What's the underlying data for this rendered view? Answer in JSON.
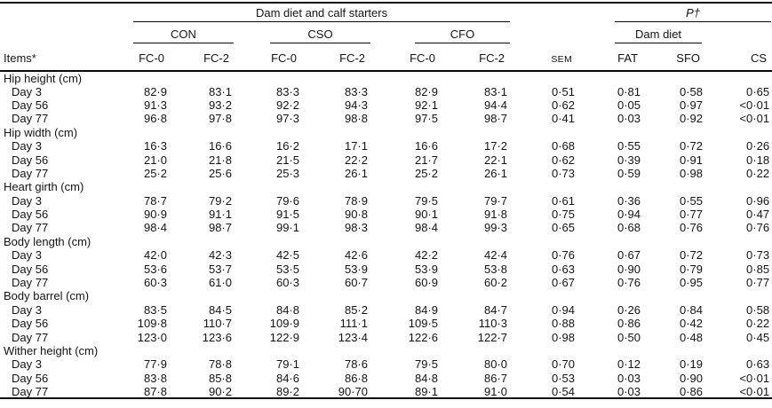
{
  "colors": {
    "background": "#ffffff",
    "text": "#141414",
    "rule": "#0a0a0a"
  },
  "table": {
    "header": {
      "items_label": "Items*",
      "top_spanner": "Dam diet and calf starters",
      "p_spanner": "P†",
      "diet_groups": [
        "CON",
        "CSO",
        "CFO"
      ],
      "dam_diet_spanner": "Dam diet",
      "sub_cols": [
        "FC-0",
        "FC-2"
      ],
      "sem_label": "SEM",
      "p_cols": [
        "FAT",
        "SFO",
        "CS"
      ]
    },
    "sections": [
      {
        "label": "Hip height (cm)",
        "rows": [
          {
            "label": "Day 3",
            "values": [
              "82·9",
              "83·1",
              "83·3",
              "83·3",
              "82·9",
              "83·1",
              "0·51",
              "0·81",
              "0·58",
              "0·65"
            ]
          },
          {
            "label": "Day 56",
            "values": [
              "91·3",
              "93·2",
              "92·2",
              "94·3",
              "92·1",
              "94·4",
              "0·62",
              "0·05",
              "0·97",
              "<0·01"
            ]
          },
          {
            "label": "Day 77",
            "values": [
              "96·8",
              "97·8",
              "97·3",
              "98·8",
              "97·5",
              "98·7",
              "0·41",
              "0·03",
              "0·92",
              "<0·01"
            ]
          }
        ]
      },
      {
        "label": "Hip width (cm)",
        "rows": [
          {
            "label": "Day 3",
            "values": [
              "16·3",
              "16·6",
              "16·2",
              "17·1",
              "16·6",
              "17·2",
              "0·68",
              "0·55",
              "0·72",
              "0·26"
            ]
          },
          {
            "label": "Day 56",
            "values": [
              "21·0",
              "21·8",
              "21·5",
              "22·2",
              "21·7",
              "22·1",
              "0·62",
              "0·39",
              "0·91",
              "0·18"
            ]
          },
          {
            "label": "Day 77",
            "values": [
              "25·2",
              "25·6",
              "25·3",
              "26·1",
              "25·2",
              "26·1",
              "0·73",
              "0·59",
              "0·98",
              "0·22"
            ]
          }
        ]
      },
      {
        "label": "Heart girth (cm)",
        "rows": [
          {
            "label": "Day 3",
            "values": [
              "78·7",
              "79·2",
              "79·6",
              "78·9",
              "79·5",
              "79·7",
              "0·61",
              "0·36",
              "0·55",
              "0·96"
            ]
          },
          {
            "label": "Day 56",
            "values": [
              "90·9",
              "91·1",
              "91·5",
              "90·8",
              "90·1",
              "91·8",
              "0·75",
              "0·94",
              "0·77",
              "0·47"
            ]
          },
          {
            "label": "Day 77",
            "values": [
              "98·4",
              "98·7",
              "99·1",
              "98·3",
              "98·4",
              "99·3",
              "0·65",
              "0·68",
              "0·76",
              "0·76"
            ]
          }
        ]
      },
      {
        "label": "Body length (cm)",
        "rows": [
          {
            "label": "Day 3",
            "values": [
              "42·0",
              "42·3",
              "42·5",
              "42·6",
              "42·2",
              "42·4",
              "0·76",
              "0·67",
              "0·72",
              "0·73"
            ]
          },
          {
            "label": "Day 56",
            "values": [
              "53·6",
              "53·7",
              "53·5",
              "53·9",
              "53·9",
              "53·8",
              "0·63",
              "0·90",
              "0·79",
              "0·85"
            ]
          },
          {
            "label": "Day 77",
            "values": [
              "60·3",
              "61·0",
              "60·3",
              "60·7",
              "60·9",
              "60·2",
              "0·67",
              "0·76",
              "0·95",
              "0·77"
            ]
          }
        ]
      },
      {
        "label": "Body barrel (cm)",
        "rows": [
          {
            "label": "Day 3",
            "values": [
              "83·5",
              "84·5",
              "84·8",
              "85·2",
              "84·9",
              "84·7",
              "0·94",
              "0·26",
              "0·84",
              "0·58"
            ]
          },
          {
            "label": "Day 56",
            "values": [
              "109·8",
              "110·7",
              "109·9",
              "111·1",
              "109·5",
              "110·3",
              "0·88",
              "0·86",
              "0·42",
              "0·22"
            ]
          },
          {
            "label": "Day 77",
            "values": [
              "123·0",
              "123·6",
              "122·9",
              "123·4",
              "122·6",
              "122·7",
              "0·98",
              "0·50",
              "0·48",
              "0·45"
            ]
          }
        ]
      },
      {
        "label": "Wither height (cm)",
        "rows": [
          {
            "label": "Day 3",
            "values": [
              "77·9",
              "78·8",
              "79·1",
              "78·6",
              "79·5",
              "80·0",
              "0·70",
              "0·12",
              "0·19",
              "0·63"
            ]
          },
          {
            "label": "Day 56",
            "values": [
              "83·8",
              "85·8",
              "84·6",
              "86·8",
              "84·8",
              "86·7",
              "0·53",
              "0·03",
              "0·90",
              "<0·01"
            ]
          },
          {
            "label": "Day 77",
            "values": [
              "87·8",
              "90·2",
              "89·2",
              "90·70",
              "89·1",
              "91·0",
              "0·54",
              "0·03",
              "0·86",
              "<0·01"
            ]
          }
        ]
      }
    ]
  }
}
